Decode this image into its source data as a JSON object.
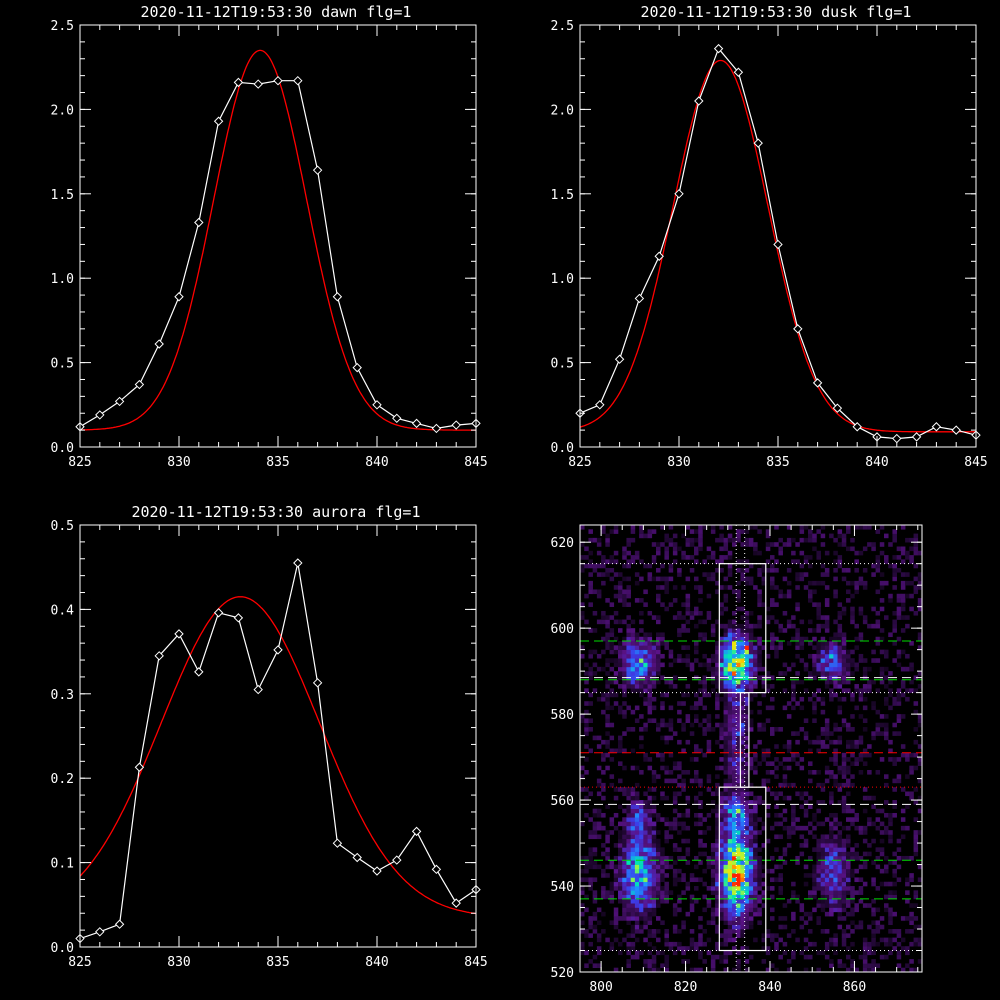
{
  "chart_data": [
    {
      "type": "line",
      "title": "2020-11-12T19:53:30 dawn flg=1",
      "xlim": [
        825,
        845
      ],
      "ylim": [
        0,
        2.5
      ],
      "xticks": [
        825,
        830,
        835,
        840,
        845
      ],
      "xtick_labels": [
        "825",
        "830",
        "835",
        "840",
        "845"
      ],
      "yticks": [
        0,
        0.5,
        1,
        1.5,
        2,
        2.5
      ],
      "ytick_labels": [
        "0.0",
        "0.5",
        "1.0",
        "1.5",
        "2.0",
        "2.5"
      ],
      "series": [
        {
          "role": "measured",
          "color": "#ffffff",
          "marker": "diamond",
          "x": [
            825,
            826,
            827,
            828,
            829,
            830,
            831,
            832,
            833,
            834,
            835,
            836,
            837,
            838,
            839,
            840,
            841,
            842,
            843,
            844,
            845
          ],
          "y": [
            0.12,
            0.19,
            0.27,
            0.37,
            0.61,
            0.89,
            1.33,
            1.93,
            2.16,
            2.15,
            2.17,
            2.17,
            1.64,
            0.89,
            0.47,
            0.25,
            0.17,
            0.14,
            0.11,
            0.13,
            0.14
          ]
        },
        {
          "role": "fit",
          "color": "#ff0000",
          "smooth": true,
          "gauss": {
            "amp": 2.25,
            "mu": 834.1,
            "sigma": 2.35,
            "base": 0.1
          }
        }
      ]
    },
    {
      "type": "line",
      "title": "2020-11-12T19:53:30 dusk flg=1",
      "xlim": [
        825,
        845
      ],
      "ylim": [
        0,
        2.5
      ],
      "xticks": [
        825,
        830,
        835,
        840,
        845
      ],
      "xtick_labels": [
        "825",
        "830",
        "835",
        "840",
        "845"
      ],
      "yticks": [
        0,
        0.5,
        1,
        1.5,
        2,
        2.5
      ],
      "ytick_labels": [
        "0.0",
        "0.5",
        "1.0",
        "1.5",
        "2.0",
        "2.5"
      ],
      "series": [
        {
          "role": "measured",
          "color": "#ffffff",
          "marker": "diamond",
          "x": [
            825,
            826,
            827,
            828,
            829,
            830,
            831,
            832,
            833,
            834,
            835,
            836,
            837,
            838,
            839,
            840,
            841,
            842,
            843,
            844,
            845
          ],
          "y": [
            0.2,
            0.25,
            0.52,
            0.88,
            1.13,
            1.5,
            2.05,
            2.36,
            2.22,
            1.8,
            1.2,
            0.7,
            0.38,
            0.23,
            0.12,
            0.06,
            0.05,
            0.06,
            0.12,
            0.1,
            0.07
          ]
        },
        {
          "role": "fit",
          "color": "#ff0000",
          "smooth": true,
          "gauss": {
            "amp": 2.2,
            "mu": 832.1,
            "sigma": 2.4,
            "base": 0.09
          }
        }
      ]
    },
    {
      "type": "line",
      "title": "2020-11-12T19:53:30 aurora flg=1",
      "xlim": [
        825,
        845
      ],
      "ylim": [
        0,
        0.5
      ],
      "xticks": [
        825,
        830,
        835,
        840,
        845
      ],
      "xtick_labels": [
        "825",
        "830",
        "835",
        "840",
        "845"
      ],
      "yticks": [
        0,
        0.1,
        0.2,
        0.3,
        0.4,
        0.5
      ],
      "ytick_labels": [
        "0.0",
        "0.1",
        "0.2",
        "0.3",
        "0.4",
        "0.5"
      ],
      "series": [
        {
          "role": "measured",
          "color": "#ffffff",
          "marker": "diamond",
          "x": [
            825,
            826,
            827,
            828,
            829,
            830,
            831,
            832,
            833,
            834,
            835,
            836,
            837,
            838,
            839,
            840,
            841,
            842,
            843,
            844,
            845
          ],
          "y": [
            0.01,
            0.018,
            0.027,
            0.213,
            0.345,
            0.371,
            0.326,
            0.396,
            0.39,
            0.305,
            0.352,
            0.455,
            0.313,
            0.123,
            0.106,
            0.09,
            0.103,
            0.137,
            0.092,
            0.052,
            0.068
          ]
        },
        {
          "role": "fit",
          "color": "#ff0000",
          "smooth": true,
          "gauss": {
            "amp": 0.38,
            "mu": 833.1,
            "sigma": 4.0,
            "base": 0.035
          }
        }
      ]
    },
    {
      "type": "heatmap",
      "xlim": [
        795,
        876
      ],
      "ylim": [
        520,
        624
      ],
      "xticks": [
        800,
        820,
        840,
        860
      ],
      "xtick_labels": [
        "800",
        "820",
        "840",
        "860"
      ],
      "yticks": [
        520,
        540,
        560,
        580,
        600,
        620
      ],
      "ytick_labels": [
        "520",
        "540",
        "560",
        "580",
        "600",
        "620"
      ],
      "colormap": [
        "#000000",
        "#2c0a45",
        "#5a1287",
        "#3c3ce8",
        "#1f8fff",
        "#00e6b4",
        "#a9f53c",
        "#ffe000",
        "#ff2200"
      ],
      "blobs": [
        {
          "x": 809,
          "y": 592,
          "sx": 2.8,
          "sy": 3.5,
          "amp": 0.55
        },
        {
          "x": 832,
          "y": 592,
          "sx": 2.6,
          "sy": 4.0,
          "amp": 0.95
        },
        {
          "x": 855,
          "y": 592,
          "sx": 2.5,
          "sy": 3.0,
          "amp": 0.42
        },
        {
          "x": 832,
          "y": 578,
          "sx": 2.0,
          "sy": 5.0,
          "amp": 0.28
        },
        {
          "x": 832,
          "y": 567,
          "sx": 1.8,
          "sy": 4.0,
          "amp": 0.18
        },
        {
          "x": 809,
          "y": 543,
          "sx": 2.8,
          "sy": 6.0,
          "amp": 0.62
        },
        {
          "x": 832,
          "y": 543,
          "sx": 2.6,
          "sy": 6.5,
          "amp": 1.0
        },
        {
          "x": 855,
          "y": 543,
          "sx": 2.5,
          "sy": 5.0,
          "amp": 0.38
        },
        {
          "x": 809,
          "y": 556,
          "sx": 2.0,
          "sy": 3.0,
          "amp": 0.3
        },
        {
          "x": 832,
          "y": 557,
          "sx": 2.2,
          "sy": 3.0,
          "amp": 0.45
        }
      ],
      "hot_pixels": [
        {
          "x": 834,
          "y": 595,
          "level": 1.0
        },
        {
          "x": 831,
          "y": 596,
          "level": 0.85
        },
        {
          "x": 833,
          "y": 591,
          "level": 0.8
        },
        {
          "x": 832,
          "y": 541,
          "level": 1.0
        },
        {
          "x": 830,
          "y": 543,
          "level": 0.85
        },
        {
          "x": 833,
          "y": 546,
          "level": 0.8
        },
        {
          "x": 809,
          "y": 592,
          "level": 0.72
        },
        {
          "x": 810,
          "y": 541,
          "level": 0.72
        }
      ],
      "boxes": [
        {
          "x0": 828,
          "x1": 839,
          "y0": 585,
          "y1": 615,
          "color": "#ffffff"
        },
        {
          "x0": 833,
          "x1": 835,
          "y0": 563,
          "y1": 585,
          "color": "#ffffff"
        },
        {
          "x0": 828,
          "x1": 839,
          "y0": 525,
          "y1": 563,
          "color": "#ffffff"
        }
      ],
      "hlines": [
        {
          "y": 615,
          "color": "#ffffff",
          "style": "dotted"
        },
        {
          "y": 597,
          "color": "#00dd00",
          "style": "dashed"
        },
        {
          "y": 588,
          "color": "#00dd00",
          "style": "dashed"
        },
        {
          "y": 588.5,
          "color": "#ffffff",
          "style": "dashed"
        },
        {
          "y": 585,
          "color": "#ffffff",
          "style": "dotted"
        },
        {
          "y": 571,
          "color": "#ff0000",
          "style": "dashed"
        },
        {
          "y": 563,
          "color": "#ff0000",
          "style": "dotted"
        },
        {
          "y": 559,
          "color": "#ffffff",
          "style": "dashed"
        },
        {
          "y": 546,
          "color": "#00dd00",
          "style": "dashed"
        },
        {
          "y": 537,
          "color": "#00dd00",
          "style": "dashed"
        },
        {
          "y": 525,
          "color": "#ffffff",
          "style": "dotted"
        }
      ],
      "vlines": [
        {
          "x": 832,
          "color": "#ffffff",
          "style": "dotted"
        },
        {
          "x": 834,
          "color": "#ffffff",
          "style": "dotted"
        }
      ]
    }
  ]
}
